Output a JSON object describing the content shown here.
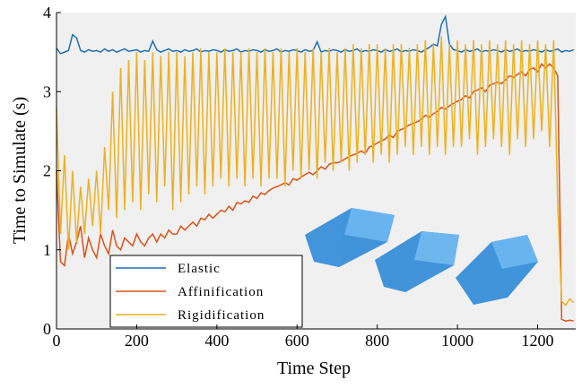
{
  "chart_data": {
    "type": "line",
    "xlabel": "Time Step",
    "ylabel": "Time to Simulate (s)",
    "x": [
      0,
      10,
      20,
      30,
      40,
      50,
      60,
      70,
      80,
      90,
      100,
      110,
      120,
      130,
      140,
      150,
      160,
      170,
      180,
      190,
      200,
      210,
      220,
      230,
      240,
      250,
      260,
      270,
      280,
      290,
      300,
      310,
      320,
      330,
      340,
      350,
      360,
      370,
      380,
      390,
      400,
      410,
      420,
      430,
      440,
      450,
      460,
      470,
      480,
      490,
      500,
      510,
      520,
      530,
      540,
      550,
      560,
      570,
      580,
      590,
      600,
      610,
      620,
      630,
      640,
      650,
      660,
      670,
      680,
      690,
      700,
      710,
      720,
      730,
      740,
      750,
      760,
      770,
      780,
      790,
      800,
      810,
      820,
      830,
      840,
      850,
      860,
      870,
      880,
      890,
      900,
      910,
      920,
      930,
      940,
      950,
      960,
      970,
      980,
      990,
      1000,
      1010,
      1020,
      1030,
      1040,
      1050,
      1060,
      1070,
      1080,
      1090,
      1100,
      1110,
      1120,
      1130,
      1140,
      1150,
      1160,
      1170,
      1180,
      1190,
      1200,
      1210,
      1220,
      1230,
      1240,
      1250,
      1260,
      1270,
      1280,
      1290
    ],
    "series": [
      {
        "name": "Elastic",
        "color": "#1f6fb4",
        "values": [
          3.55,
          3.48,
          3.5,
          3.52,
          3.72,
          3.68,
          3.52,
          3.5,
          3.53,
          3.51,
          3.52,
          3.5,
          3.54,
          3.51,
          3.53,
          3.5,
          3.52,
          3.54,
          3.51,
          3.52,
          3.53,
          3.5,
          3.52,
          3.51,
          3.64,
          3.53,
          3.5,
          3.52,
          3.54,
          3.51,
          3.52,
          3.5,
          3.53,
          3.51,
          3.52,
          3.54,
          3.5,
          3.52,
          3.51,
          3.53,
          3.52,
          3.5,
          3.53,
          3.51,
          3.52,
          3.54,
          3.5,
          3.52,
          3.51,
          3.53,
          3.52,
          3.5,
          3.53,
          3.51,
          3.52,
          3.54,
          3.5,
          3.52,
          3.51,
          3.53,
          3.52,
          3.5,
          3.53,
          3.51,
          3.52,
          3.63,
          3.5,
          3.52,
          3.51,
          3.53,
          3.52,
          3.5,
          3.53,
          3.51,
          3.52,
          3.54,
          3.5,
          3.52,
          3.51,
          3.53,
          3.52,
          3.5,
          3.53,
          3.51,
          3.52,
          3.54,
          3.5,
          3.52,
          3.51,
          3.53,
          3.52,
          3.5,
          3.53,
          3.56,
          3.6,
          3.58,
          3.85,
          3.95,
          3.6,
          3.53,
          3.52,
          3.5,
          3.53,
          3.51,
          3.52,
          3.54,
          3.5,
          3.52,
          3.51,
          3.53,
          3.52,
          3.5,
          3.53,
          3.51,
          3.52,
          3.54,
          3.5,
          3.52,
          3.51,
          3.53,
          3.52,
          3.5,
          3.53,
          3.51,
          3.52,
          3.54,
          3.5,
          3.52,
          3.51,
          3.53
        ]
      },
      {
        "name": "Affinification",
        "color": "#d95319",
        "values": [
          2.0,
          0.85,
          0.8,
          1.2,
          0.95,
          1.1,
          1.3,
          0.9,
          1.15,
          1.0,
          0.9,
          1.2,
          1.05,
          0.95,
          1.25,
          1.05,
          1.0,
          1.15,
          1.1,
          1.05,
          1.2,
          1.1,
          1.05,
          1.15,
          1.2,
          1.1,
          1.2,
          1.15,
          1.25,
          1.2,
          1.2,
          1.3,
          1.25,
          1.3,
          1.35,
          1.3,
          1.4,
          1.38,
          1.45,
          1.4,
          1.45,
          1.5,
          1.48,
          1.55,
          1.5,
          1.6,
          1.58,
          1.62,
          1.6,
          1.68,
          1.65,
          1.72,
          1.7,
          1.75,
          1.78,
          1.8,
          1.82,
          1.85,
          1.82,
          1.9,
          1.88,
          1.92,
          1.95,
          1.98,
          1.95,
          2.0,
          2.05,
          2.02,
          2.08,
          2.1,
          2.1,
          2.12,
          2.15,
          2.18,
          2.2,
          2.22,
          2.25,
          2.22,
          2.3,
          2.32,
          2.35,
          2.38,
          2.4,
          2.45,
          2.42,
          2.5,
          2.52,
          2.55,
          2.58,
          2.6,
          2.62,
          2.65,
          2.7,
          2.68,
          2.72,
          2.75,
          2.8,
          2.78,
          2.82,
          2.85,
          2.88,
          2.9,
          2.95,
          2.92,
          3.0,
          3.02,
          3.05,
          3.0,
          3.08,
          3.1,
          3.12,
          3.1,
          3.15,
          3.2,
          3.18,
          3.22,
          3.25,
          3.2,
          3.28,
          3.3,
          3.25,
          3.35,
          3.3,
          3.35,
          3.3,
          3.2,
          0.12,
          0.1,
          0.11,
          0.1
        ]
      },
      {
        "name": "Rigidification",
        "color": "#edb120",
        "values": [
          2.8,
          1.2,
          2.2,
          1.0,
          2.0,
          1.1,
          1.8,
          1.2,
          1.9,
          1.3,
          2.0,
          1.2,
          2.3,
          1.5,
          3.0,
          1.4,
          3.3,
          1.5,
          3.4,
          1.6,
          3.5,
          1.5,
          3.4,
          1.7,
          3.5,
          1.6,
          3.45,
          1.8,
          3.5,
          1.5,
          3.5,
          1.6,
          3.45,
          1.7,
          3.5,
          1.8,
          3.55,
          1.7,
          3.5,
          1.8,
          3.5,
          1.9,
          3.55,
          1.8,
          3.5,
          1.9,
          3.5,
          1.8,
          3.55,
          1.9,
          3.5,
          1.8,
          3.55,
          1.9,
          3.5,
          1.9,
          3.55,
          1.8,
          3.5,
          2.0,
          3.55,
          1.9,
          3.5,
          2.0,
          3.55,
          1.9,
          3.5,
          2.1,
          3.55,
          2.0,
          3.5,
          2.1,
          3.55,
          2.0,
          3.6,
          2.1,
          3.55,
          2.2,
          3.6,
          2.1,
          3.6,
          2.2,
          3.55,
          2.1,
          3.6,
          2.2,
          3.6,
          2.3,
          3.55,
          2.2,
          3.6,
          2.3,
          3.65,
          2.2,
          3.6,
          2.3,
          3.7,
          2.2,
          3.6,
          2.3,
          3.65,
          2.3,
          3.6,
          2.4,
          3.65,
          2.2,
          3.6,
          2.3,
          3.65,
          2.4,
          3.6,
          2.3,
          3.65,
          2.2,
          3.6,
          2.4,
          3.65,
          2.3,
          3.6,
          2.4,
          3.65,
          2.5,
          3.6,
          2.3,
          3.65,
          1.6,
          0.35,
          0.3,
          0.38,
          0.33
        ]
      }
    ],
    "xlim": [
      0,
      1295
    ],
    "ylim": [
      0,
      4
    ],
    "xticks": [
      0,
      200,
      400,
      600,
      800,
      1000,
      1200
    ],
    "yticks": [
      0,
      1,
      2,
      3,
      4
    ]
  }
}
